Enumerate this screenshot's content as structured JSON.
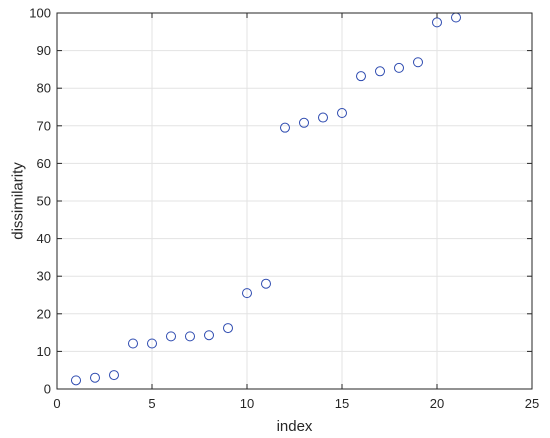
{
  "chart_data": {
    "type": "scatter",
    "xlabel": "index",
    "ylabel": "dissimilarity",
    "xlim": [
      0,
      25
    ],
    "ylim": [
      0,
      100
    ],
    "xticks": [
      0,
      5,
      10,
      15,
      20,
      25
    ],
    "yticks": [
      0,
      10,
      20,
      30,
      40,
      50,
      60,
      70,
      80,
      90,
      100
    ],
    "grid": true,
    "marker": "circle",
    "marker_color": "#2e4bb0",
    "series": [
      {
        "x": [
          1,
          2,
          3,
          4,
          5,
          6,
          7,
          8,
          9,
          10,
          11,
          12,
          13,
          14,
          15,
          16,
          17,
          18,
          19,
          20,
          21
        ],
        "y": [
          2.3,
          3.0,
          3.7,
          12.1,
          12.1,
          14.0,
          14.0,
          14.3,
          16.2,
          25.5,
          28.0,
          69.5,
          70.8,
          72.2,
          73.4,
          83.2,
          84.5,
          85.4,
          86.9,
          97.5,
          98.8
        ]
      }
    ]
  }
}
